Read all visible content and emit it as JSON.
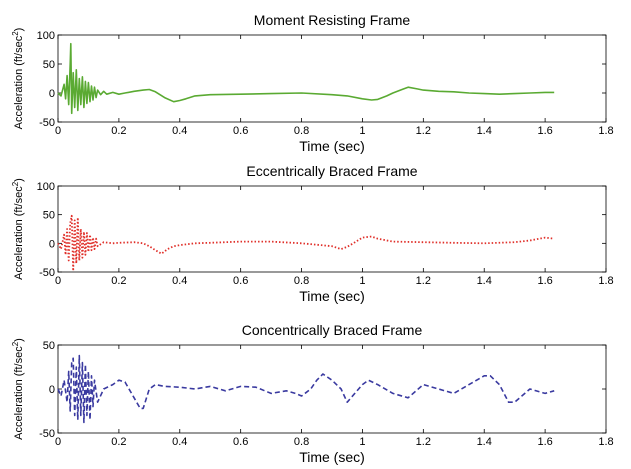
{
  "chart_data": [
    {
      "type": "line",
      "title": "Moment Resisting Frame",
      "xlabel": "Time (sec)",
      "ylabel": "Acceleration (ft/sec",
      "ylabel_sup": "2",
      "ylabel_close": ")",
      "xlim": [
        0,
        1.8
      ],
      "ylim": [
        -50,
        100
      ],
      "xticks": [
        0,
        0.2,
        0.4,
        0.6,
        0.8,
        1,
        1.2,
        1.4,
        1.6,
        1.8
      ],
      "xtick_labels": [
        "0",
        "0.2",
        "0.4",
        "0.6",
        "0.8",
        "1",
        "1.2",
        "1.4",
        "1.6",
        "1.8"
      ],
      "yticks": [
        -50,
        0,
        50,
        100
      ],
      "ytick_labels": [
        "-50",
        "0",
        "50",
        "100"
      ],
      "grid": false,
      "series": [
        {
          "color": "#5aaa32",
          "style": "solid",
          "x": [
            0,
            0.01,
            0.02,
            0.025,
            0.03,
            0.035,
            0.04,
            0.042,
            0.045,
            0.05,
            0.055,
            0.06,
            0.065,
            0.07,
            0.075,
            0.08,
            0.085,
            0.09,
            0.095,
            0.1,
            0.105,
            0.11,
            0.115,
            0.12,
            0.125,
            0.13,
            0.14,
            0.15,
            0.16,
            0.18,
            0.2,
            0.22,
            0.25,
            0.28,
            0.3,
            0.32,
            0.35,
            0.38,
            0.4,
            0.42,
            0.45,
            0.5,
            0.6,
            0.7,
            0.8,
            0.9,
            0.95,
            1.0,
            1.03,
            1.05,
            1.08,
            1.1,
            1.13,
            1.15,
            1.18,
            1.2,
            1.25,
            1.3,
            1.35,
            1.4,
            1.45,
            1.5,
            1.55,
            1.6,
            1.63
          ],
          "y": [
            0,
            -5,
            15,
            -10,
            30,
            -20,
            50,
            85,
            -35,
            35,
            -25,
            40,
            -30,
            25,
            -20,
            28,
            -25,
            20,
            -18,
            18,
            -15,
            12,
            -12,
            10,
            -8,
            5,
            -3,
            3,
            -2,
            1,
            -2,
            0,
            3,
            5,
            6,
            2,
            -8,
            -15,
            -13,
            -10,
            -5,
            -3,
            -2,
            -1,
            0,
            -3,
            -5,
            -10,
            -12,
            -11,
            -5,
            0,
            6,
            10,
            7,
            5,
            3,
            2,
            0,
            -1,
            -2,
            -1,
            0,
            1,
            1
          ]
        }
      ]
    },
    {
      "type": "line",
      "title": "Eccentrically Braced Frame",
      "xlabel": "Time (sec)",
      "ylabel": "Acceleration (ft/sec",
      "ylabel_sup": "2",
      "ylabel_close": ")",
      "xlim": [
        0,
        1.8
      ],
      "ylim": [
        -50,
        100
      ],
      "xticks": [
        0,
        0.2,
        0.4,
        0.6,
        0.8,
        1,
        1.2,
        1.4,
        1.6,
        1.8
      ],
      "xtick_labels": [
        "0",
        "0.2",
        "0.4",
        "0.6",
        "0.8",
        "1",
        "1.2",
        "1.4",
        "1.6",
        "1.8"
      ],
      "yticks": [
        -50,
        0,
        50,
        100
      ],
      "ytick_labels": [
        "-50",
        "0",
        "50",
        "100"
      ],
      "grid": false,
      "series": [
        {
          "color": "#e0302a",
          "style": "dotted",
          "x": [
            0,
            0.01,
            0.02,
            0.025,
            0.03,
            0.035,
            0.04,
            0.045,
            0.05,
            0.055,
            0.06,
            0.065,
            0.07,
            0.075,
            0.08,
            0.085,
            0.09,
            0.095,
            0.1,
            0.105,
            0.11,
            0.115,
            0.12,
            0.125,
            0.13,
            0.15,
            0.18,
            0.2,
            0.25,
            0.28,
            0.3,
            0.32,
            0.34,
            0.36,
            0.38,
            0.4,
            0.45,
            0.5,
            0.6,
            0.7,
            0.8,
            0.9,
            0.93,
            0.95,
            0.97,
            1.0,
            1.03,
            1.05,
            1.1,
            1.2,
            1.3,
            1.4,
            1.5,
            1.55,
            1.6,
            1.63
          ],
          "y": [
            0,
            -10,
            15,
            -20,
            25,
            -30,
            35,
            48,
            -48,
            40,
            -35,
            45,
            -30,
            25,
            -25,
            20,
            -20,
            18,
            -15,
            15,
            -12,
            10,
            -10,
            8,
            -5,
            2,
            0,
            1,
            2,
            0,
            -5,
            -12,
            -18,
            -10,
            -5,
            -3,
            0,
            1,
            3,
            3,
            0,
            -5,
            -10,
            -6,
            0,
            10,
            12,
            8,
            3,
            2,
            1,
            0,
            2,
            5,
            10,
            8
          ]
        }
      ]
    },
    {
      "type": "line",
      "title": "Concentrically Braced Frame",
      "xlabel": "Time (sec)",
      "ylabel": "Acceleration (ft/sec",
      "ylabel_sup": "2",
      "ylabel_close": ")",
      "xlim": [
        0,
        1.8
      ],
      "ylim": [
        -50,
        50
      ],
      "xticks": [
        0,
        0.2,
        0.4,
        0.6,
        0.8,
        1,
        1.2,
        1.4,
        1.6,
        1.8
      ],
      "xtick_labels": [
        "0",
        "0.2",
        "0.4",
        "0.6",
        "0.8",
        "1",
        "1.2",
        "1.4",
        "1.6",
        "1.8"
      ],
      "yticks": [
        -50,
        0,
        50
      ],
      "ytick_labels": [
        "-50",
        "0",
        "50"
      ],
      "grid": false,
      "series": [
        {
          "color": "#3a3aa0",
          "style": "dashed",
          "x": [
            0,
            0.01,
            0.02,
            0.03,
            0.035,
            0.04,
            0.045,
            0.05,
            0.055,
            0.06,
            0.065,
            0.07,
            0.075,
            0.08,
            0.085,
            0.09,
            0.095,
            0.1,
            0.105,
            0.11,
            0.115,
            0.12,
            0.13,
            0.15,
            0.18,
            0.2,
            0.22,
            0.25,
            0.27,
            0.28,
            0.3,
            0.32,
            0.35,
            0.4,
            0.45,
            0.5,
            0.55,
            0.6,
            0.65,
            0.7,
            0.75,
            0.78,
            0.8,
            0.83,
            0.85,
            0.87,
            0.9,
            0.93,
            0.95,
            1.0,
            1.02,
            1.05,
            1.1,
            1.15,
            1.2,
            1.25,
            1.3,
            1.35,
            1.4,
            1.42,
            1.45,
            1.48,
            1.5,
            1.55,
            1.6,
            1.63
          ],
          "y": [
            0,
            -8,
            10,
            -15,
            20,
            -25,
            30,
            35,
            -30,
            25,
            -35,
            38,
            -30,
            30,
            -38,
            28,
            -30,
            20,
            -35,
            15,
            -20,
            10,
            -15,
            0,
            5,
            10,
            8,
            -10,
            -22,
            -22,
            0,
            5,
            3,
            2,
            0,
            3,
            -2,
            3,
            2,
            -5,
            -2,
            -5,
            -8,
            0,
            10,
            17,
            10,
            0,
            -15,
            5,
            10,
            5,
            -5,
            -10,
            5,
            0,
            -5,
            5,
            15,
            15,
            5,
            -15,
            -15,
            0,
            -5,
            -2
          ]
        }
      ]
    }
  ]
}
